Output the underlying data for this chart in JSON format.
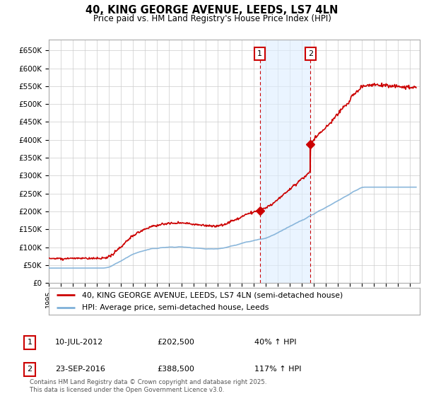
{
  "title": "40, KING GEORGE AVENUE, LEEDS, LS7 4LN",
  "subtitle": "Price paid vs. HM Land Registry's House Price Index (HPI)",
  "ylim": [
    0,
    680000
  ],
  "yticks": [
    0,
    50000,
    100000,
    150000,
    200000,
    250000,
    300000,
    350000,
    400000,
    450000,
    500000,
    550000,
    600000,
    650000
  ],
  "ytick_labels": [
    "£0",
    "£50K",
    "£100K",
    "£150K",
    "£200K",
    "£250K",
    "£300K",
    "£350K",
    "£400K",
    "£450K",
    "£500K",
    "£550K",
    "£600K",
    "£650K"
  ],
  "xlim_start": 1995.0,
  "xlim_end": 2025.8,
  "sale1_x": 2012.53,
  "sale1_y": 202500,
  "sale1_label": "1",
  "sale2_x": 2016.73,
  "sale2_y": 388500,
  "sale2_label": "2",
  "shade_color": "#ddeeff",
  "shade_alpha": 0.6,
  "red_line_color": "#cc0000",
  "blue_line_color": "#7fb0d8",
  "legend_line1": "40, KING GEORGE AVENUE, LEEDS, LS7 4LN (semi-detached house)",
  "legend_line2": "HPI: Average price, semi-detached house, Leeds",
  "footer": "Contains HM Land Registry data © Crown copyright and database right 2025.\nThis data is licensed under the Open Government Licence v3.0.",
  "background_color": "#ffffff",
  "grid_color": "#cccccc"
}
